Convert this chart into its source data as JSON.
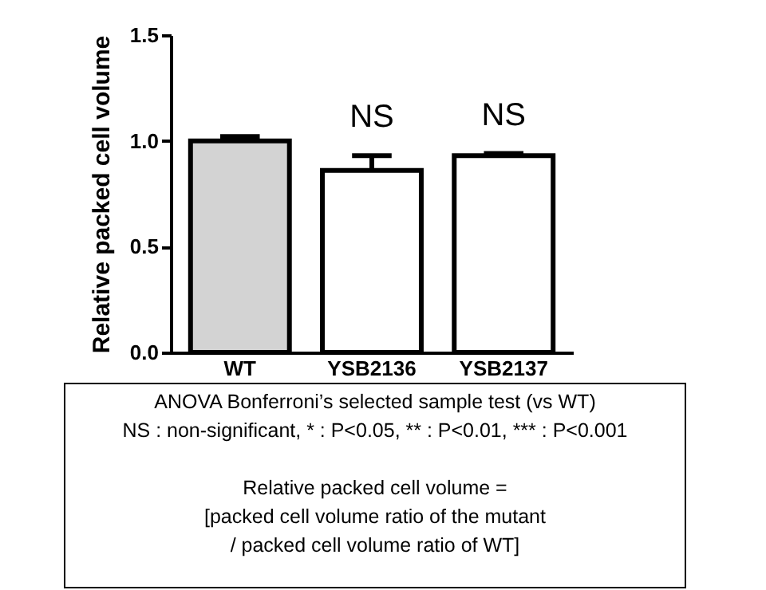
{
  "chart_data": {
    "type": "bar",
    "ylabel": "Relative packed cell volume",
    "categories": [
      "WT",
      "YSB2136",
      "YSB2137"
    ],
    "values": [
      1.0,
      0.86,
      0.93
    ],
    "errors": [
      [
        1.0,
        1.02
      ],
      [
        0.86,
        0.93
      ],
      [
        0.93,
        0.94
      ]
    ],
    "colors": [
      "#d3d3d3",
      "#ffffff",
      "#ffffff"
    ],
    "ylim": [
      0,
      1.5
    ],
    "yticks": [
      {
        "value": 0,
        "label": "0.0"
      },
      {
        "value": 0.5,
        "label": "0.5"
      },
      {
        "value": 1,
        "label": "1.0"
      },
      {
        "value": 1.5,
        "label": "1.5"
      }
    ],
    "grid": false,
    "annotations": [
      {
        "text": "NS",
        "x": "YSB2136",
        "y": 0.93
      },
      {
        "text": "NS",
        "x": "YSB2137",
        "y": 0.94
      },
      "ANOVA Bonferroni’s selected sample test (vs WT)",
      "NS : non-significant, * : P<0.05, ** : P<0.01, *** : P<0.001",
      "Relative packed cell volume =",
      "[packed cell volume ratio of the mutant",
      "/ packed cell volume ratio of WT]"
    ]
  }
}
